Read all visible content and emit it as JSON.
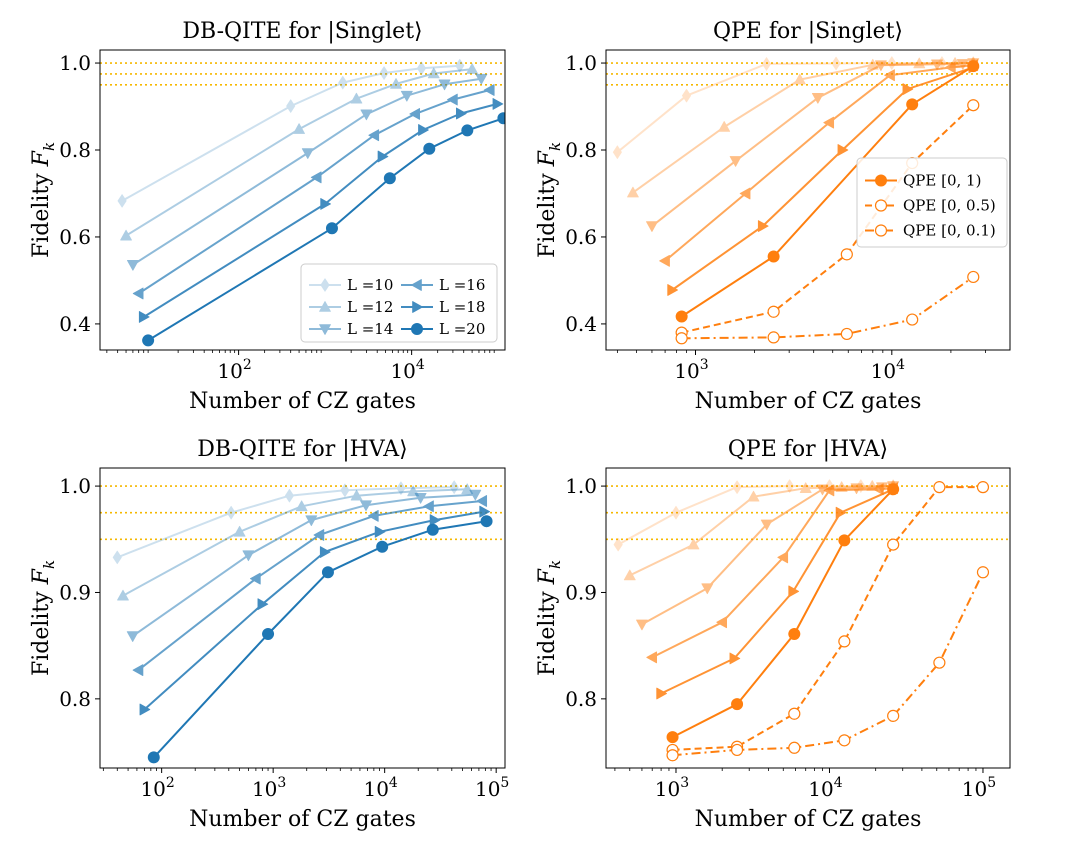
{
  "chart_data": [
    {
      "type": "line",
      "title": "DB-QITE for |Singlet⟩",
      "xlabel": "Number of CZ gates",
      "ylabel": "Fidelity F_k",
      "ylabel_main": "Fidelity ",
      "ylabel_sub": "k",
      "xscale": "log",
      "xlim": [
        2.5,
        120000
      ],
      "ylim": [
        0.34,
        1.03
      ],
      "xticks": [
        {
          "v": 100,
          "b": "10",
          "e": "2"
        },
        {
          "v": 10000,
          "b": "10",
          "e": "4"
        }
      ],
      "yticks": [
        {
          "v": 0.4,
          "label": "0.4"
        },
        {
          "v": 0.6,
          "label": "0.6"
        },
        {
          "v": 0.8,
          "label": "0.8"
        },
        {
          "v": 1.0,
          "label": "1.0"
        }
      ],
      "hlines": [
        1.0,
        0.975,
        0.95
      ],
      "grid": false,
      "legend": {
        "location": "lower-right",
        "columns": 2,
        "entries": [
          {
            "series": 0,
            "label": "L =10"
          },
          {
            "series": 1,
            "label": "L =12"
          },
          {
            "series": 2,
            "label": "L =14"
          },
          {
            "series": 3,
            "label": "L =16"
          },
          {
            "series": 4,
            "label": "L =18"
          },
          {
            "series": 5,
            "label": "L =20"
          }
        ]
      },
      "series": [
        {
          "name": "L =10",
          "color": "#1f77b4",
          "alpha": 0.22,
          "marker": "diamond",
          "dash": "solid",
          "x": [
            4.5,
            400,
            1600,
            4800,
            13000,
            36000
          ],
          "y": [
            0.683,
            0.901,
            0.955,
            0.977,
            0.988,
            0.994
          ]
        },
        {
          "name": "L =12",
          "color": "#1f77b4",
          "alpha": 0.36,
          "marker": "triangle-up",
          "dash": "solid",
          "x": [
            5,
            500,
            2300,
            6600,
            18000,
            50000
          ],
          "y": [
            0.603,
            0.848,
            0.918,
            0.952,
            0.976,
            0.986
          ]
        },
        {
          "name": "L =14",
          "color": "#1f77b4",
          "alpha": 0.5,
          "marker": "triangle-down",
          "dash": "solid",
          "x": [
            6,
            630,
            3000,
            8800,
            24000,
            64000
          ],
          "y": [
            0.536,
            0.793,
            0.882,
            0.925,
            0.951,
            0.964
          ]
        },
        {
          "name": "L =16",
          "color": "#1f77b4",
          "alpha": 0.68,
          "marker": "triangle-left",
          "dash": "solid",
          "x": [
            7,
            800,
            3700,
            11000,
            30000,
            80000
          ],
          "y": [
            0.47,
            0.737,
            0.834,
            0.883,
            0.916,
            0.938
          ]
        },
        {
          "name": "L =18",
          "color": "#1f77b4",
          "alpha": 0.84,
          "marker": "triangle-right",
          "dash": "solid",
          "x": [
            8,
            1000,
            4600,
            13500,
            37000,
            98000
          ],
          "y": [
            0.416,
            0.676,
            0.785,
            0.846,
            0.884,
            0.906
          ]
        },
        {
          "name": "L =20",
          "color": "#1f77b4",
          "alpha": 1.0,
          "marker": "circle",
          "dash": "solid",
          "x": [
            9,
            1200,
            5600,
            16000,
            44000,
            115000
          ],
          "y": [
            0.362,
            0.62,
            0.735,
            0.803,
            0.845,
            0.873
          ]
        }
      ]
    },
    {
      "type": "line",
      "title": "QPE for |Singlet⟩",
      "xlabel": "Number of CZ gates",
      "ylabel": "Fidelity F_k",
      "ylabel_main": "Fidelity ",
      "ylabel_sub": "k",
      "xscale": "log",
      "xlim": [
        350,
        40000
      ],
      "ylim": [
        0.34,
        1.03
      ],
      "xticks": [
        {
          "v": 1000,
          "b": "10",
          "e": "3"
        },
        {
          "v": 10000,
          "b": "10",
          "e": "4"
        }
      ],
      "yticks": [
        {
          "v": 0.4,
          "label": "0.4"
        },
        {
          "v": 0.6,
          "label": "0.6"
        },
        {
          "v": 0.8,
          "label": "0.8"
        },
        {
          "v": 1.0,
          "label": "1.0"
        }
      ],
      "hlines": [
        1.0,
        0.975,
        0.95
      ],
      "grid": false,
      "legend": {
        "location": "center-right",
        "columns": 1,
        "entries": [
          {
            "series": 5,
            "label": "QPE [0, 1)"
          },
          {
            "series": 6,
            "label": "QPE [0, 0.5)"
          },
          {
            "series": 7,
            "label": "QPE [0, 0.1)"
          }
        ]
      },
      "series": [
        {
          "name": "",
          "color": "#ff7f0e",
          "alpha": 0.22,
          "marker": "diamond",
          "dash": "solid",
          "x": [
            400,
            900,
            2300,
            5200,
            10000,
            18000,
            26000
          ],
          "y": [
            0.795,
            0.925,
            0.998,
            0.999,
            1.0,
            1.0,
            1.0
          ]
        },
        {
          "name": "",
          "color": "#ff7f0e",
          "alpha": 0.36,
          "marker": "triangle-up",
          "dash": "solid",
          "x": [
            480,
            1400,
            3400,
            8000,
            13800,
            21000,
            26000
          ],
          "y": [
            0.702,
            0.853,
            0.962,
            0.996,
            0.999,
            1.0,
            1.0
          ]
        },
        {
          "name": "",
          "color": "#ff7f0e",
          "alpha": 0.5,
          "marker": "triangle-down",
          "dash": "solid",
          "x": [
            600,
            1600,
            4200,
            8800,
            17000,
            23000,
            26000
          ],
          "y": [
            0.625,
            0.775,
            0.92,
            0.995,
            0.997,
            0.998,
            1.0
          ]
        },
        {
          "name": "",
          "color": "#ff7f0e",
          "alpha": 0.68,
          "marker": "triangle-left",
          "dash": "solid",
          "x": [
            700,
            1800,
            4800,
            9800,
            20000,
            26000
          ],
          "y": [
            0.545,
            0.7,
            0.863,
            0.972,
            0.99,
            0.995
          ]
        },
        {
          "name": "",
          "color": "#ff7f0e",
          "alpha": 0.84,
          "marker": "triangle-right",
          "dash": "solid",
          "x": [
            760,
            2200,
            5600,
            12000,
            26000
          ],
          "y": [
            0.478,
            0.625,
            0.8,
            0.94,
            0.99
          ]
        },
        {
          "name": "QPE [0, 1)",
          "color": "#ff7f0e",
          "alpha": 1.0,
          "marker": "circle",
          "dash": "solid",
          "x": [
            850,
            2500,
            12700,
            26000
          ],
          "y": [
            0.417,
            0.555,
            0.905,
            0.993
          ]
        },
        {
          "name": "QPE [0, 0.5)",
          "color": "#ff7f0e",
          "alpha": 1.0,
          "marker": "circle-open",
          "dash": "dashed",
          "x": [
            850,
            2500,
            5900,
            12700,
            26000
          ],
          "y": [
            0.38,
            0.428,
            0.56,
            0.77,
            0.903
          ]
        },
        {
          "name": "QPE [0, 0.1)",
          "color": "#ff7f0e",
          "alpha": 1.0,
          "marker": "circle-open",
          "dash": "dashdot",
          "x": [
            850,
            2500,
            5900,
            12700,
            26000
          ],
          "y": [
            0.367,
            0.369,
            0.377,
            0.41,
            0.508
          ]
        }
      ]
    },
    {
      "type": "line",
      "title": "DB-QITE for |HVA⟩",
      "xlabel": "Number of CZ gates",
      "ylabel": "Fidelity F_k",
      "ylabel_main": "Fidelity ",
      "ylabel_sub": "k",
      "xscale": "log",
      "xlim": [
        28,
        120000
      ],
      "ylim": [
        0.735,
        1.017
      ],
      "xticks": [
        {
          "v": 100,
          "b": "10",
          "e": "2"
        },
        {
          "v": 1000,
          "b": "10",
          "e": "3"
        },
        {
          "v": 10000,
          "b": "10",
          "e": "4"
        },
        {
          "v": 100000,
          "b": "10",
          "e": "5"
        }
      ],
      "yticks": [
        {
          "v": 0.8,
          "label": "0.8"
        },
        {
          "v": 0.9,
          "label": "0.9"
        },
        {
          "v": 1.0,
          "label": "1.0"
        }
      ],
      "hlines": [
        1.0,
        0.975,
        0.95
      ],
      "grid": false,
      "series": [
        {
          "name": "",
          "color": "#1f77b4",
          "alpha": 0.22,
          "marker": "diamond",
          "dash": "solid",
          "x": [
            40,
            420,
            1400,
            4400,
            14000,
            42000
          ],
          "y": [
            0.933,
            0.975,
            0.991,
            0.996,
            0.998,
            0.999
          ]
        },
        {
          "name": "",
          "color": "#1f77b4",
          "alpha": 0.36,
          "marker": "triangle-up",
          "dash": "solid",
          "x": [
            45,
            500,
            1800,
            5600,
            18000,
            55000
          ],
          "y": [
            0.897,
            0.957,
            0.981,
            0.991,
            0.995,
            0.997
          ]
        },
        {
          "name": "",
          "color": "#1f77b4",
          "alpha": 0.5,
          "marker": "triangle-down",
          "dash": "solid",
          "x": [
            55,
            600,
            2200,
            6800,
            21000,
            65000
          ],
          "y": [
            0.859,
            0.935,
            0.968,
            0.982,
            0.989,
            0.992
          ]
        },
        {
          "name": "",
          "color": "#1f77b4",
          "alpha": 0.68,
          "marker": "triangle-left",
          "dash": "solid",
          "x": [
            62,
            700,
            2600,
            8000,
            25000,
            75000
          ],
          "y": [
            0.827,
            0.913,
            0.954,
            0.972,
            0.981,
            0.986
          ]
        },
        {
          "name": "",
          "color": "#1f77b4",
          "alpha": 0.84,
          "marker": "triangle-right",
          "dash": "solid",
          "x": [
            70,
            800,
            2900,
            9000,
            28000,
            78000
          ],
          "y": [
            0.79,
            0.889,
            0.938,
            0.957,
            0.968,
            0.976
          ]
        },
        {
          "name": "",
          "color": "#1f77b4",
          "alpha": 1.0,
          "marker": "circle",
          "dash": "solid",
          "x": [
            85,
            900,
            3100,
            9500,
            27000,
            82000
          ],
          "y": [
            0.745,
            0.861,
            0.919,
            0.943,
            0.959,
            0.967
          ]
        }
      ]
    },
    {
      "type": "line",
      "title": "QPE for |HVA⟩",
      "xlabel": "Number of CZ gates",
      "ylabel": "Fidelity F_k",
      "ylabel_main": "Fidelity ",
      "ylabel_sub": "k",
      "xscale": "log",
      "xlim": [
        350,
        150000
      ],
      "ylim": [
        0.735,
        1.017
      ],
      "xticks": [
        {
          "v": 1000,
          "b": "10",
          "e": "3"
        },
        {
          "v": 10000,
          "b": "10",
          "e": "4"
        },
        {
          "v": 100000,
          "b": "10",
          "e": "5"
        }
      ],
      "yticks": [
        {
          "v": 0.8,
          "label": "0.8"
        },
        {
          "v": 0.9,
          "label": "0.9"
        },
        {
          "v": 1.0,
          "label": "1.0"
        }
      ],
      "hlines": [
        1.0,
        0.975,
        0.95
      ],
      "grid": false,
      "series": [
        {
          "name": "",
          "color": "#ff7f0e",
          "alpha": 0.22,
          "marker": "diamond",
          "dash": "solid",
          "x": [
            420,
            1000,
            2500,
            5500,
            10000,
            16000,
            26000
          ],
          "y": [
            0.945,
            0.975,
            0.999,
            1.0,
            1.0,
            1.0,
            1.0
          ]
        },
        {
          "name": "",
          "color": "#ff7f0e",
          "alpha": 0.36,
          "marker": "triangle-up",
          "dash": "solid",
          "x": [
            500,
            1300,
            3200,
            7000,
            12000,
            19000,
            26000
          ],
          "y": [
            0.916,
            0.945,
            0.99,
            0.998,
            0.999,
            1.0,
            1.0
          ]
        },
        {
          "name": "",
          "color": "#ff7f0e",
          "alpha": 0.5,
          "marker": "triangle-down",
          "dash": "solid",
          "x": [
            600,
            1600,
            3900,
            9000,
            15000,
            22000,
            26000
          ],
          "y": [
            0.87,
            0.904,
            0.964,
            0.997,
            0.998,
            0.999,
            1.0
          ]
        },
        {
          "name": "",
          "color": "#ff7f0e",
          "alpha": 0.68,
          "marker": "triangle-left",
          "dash": "solid",
          "x": [
            700,
            2000,
            5000,
            10000,
            21000,
            26000
          ],
          "y": [
            0.839,
            0.872,
            0.933,
            0.996,
            0.997,
            0.998
          ]
        },
        {
          "name": "",
          "color": "#ff7f0e",
          "alpha": 0.84,
          "marker": "triangle-right",
          "dash": "solid",
          "x": [
            800,
            2400,
            5800,
            11800,
            26000
          ],
          "y": [
            0.805,
            0.838,
            0.901,
            0.975,
            0.997
          ]
        },
        {
          "name": "",
          "color": "#ff7f0e",
          "alpha": 1.0,
          "marker": "circle",
          "dash": "solid",
          "x": [
            950,
            2500,
            5900,
            12500,
            26000
          ],
          "y": [
            0.764,
            0.795,
            0.861,
            0.949,
            0.997
          ]
        },
        {
          "name": "",
          "color": "#ff7f0e",
          "alpha": 1.0,
          "marker": "circle-open",
          "dash": "dashed",
          "x": [
            950,
            2500,
            5900,
            12500,
            26000,
            52000,
            100000
          ],
          "y": [
            0.752,
            0.755,
            0.786,
            0.854,
            0.945,
            0.999,
            0.999
          ]
        },
        {
          "name": "",
          "color": "#ff7f0e",
          "alpha": 1.0,
          "marker": "circle-open",
          "dash": "dashdot",
          "x": [
            950,
            2500,
            5900,
            12500,
            26000,
            52000,
            100000
          ],
          "y": [
            0.747,
            0.752,
            0.754,
            0.761,
            0.784,
            0.834,
            0.919
          ]
        }
      ]
    }
  ],
  "colors": {
    "hline": "#f5b800",
    "blue": "#1f77b4",
    "orange": "#ff7f0e"
  }
}
